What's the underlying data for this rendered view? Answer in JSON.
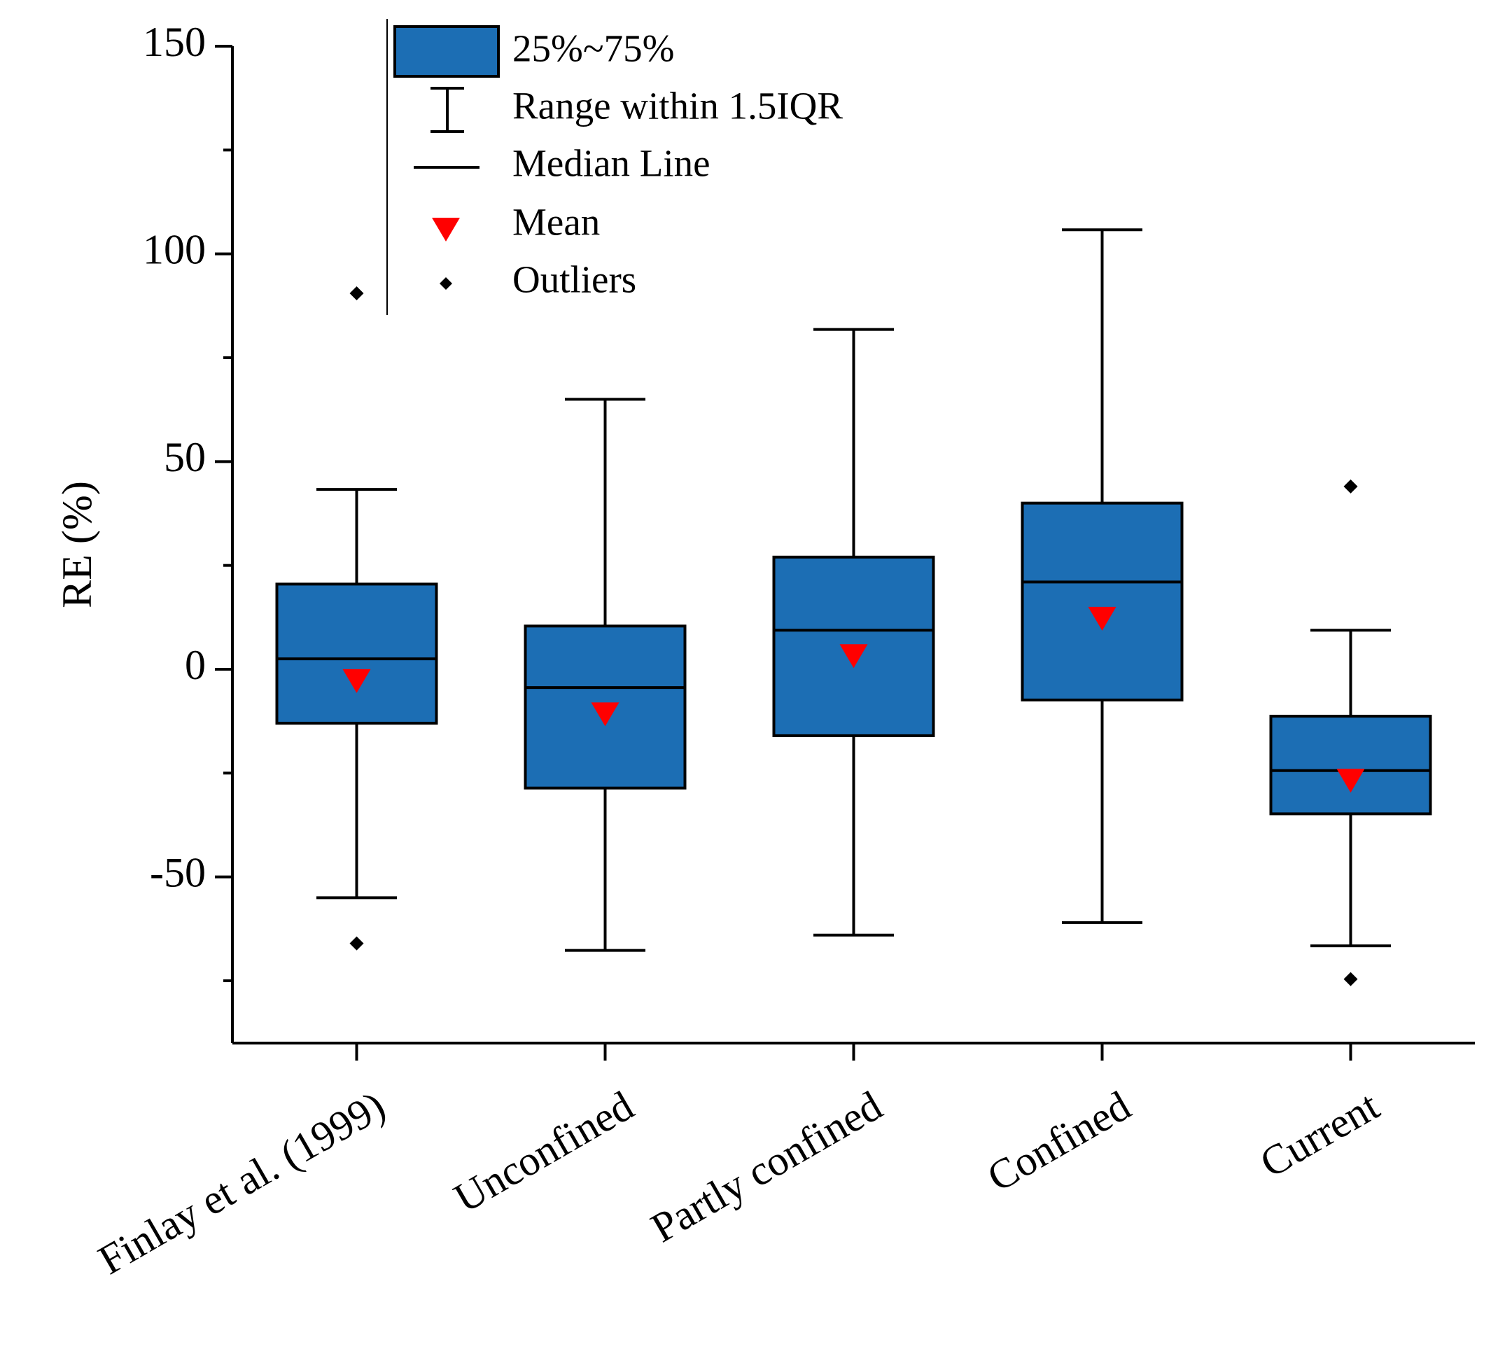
{
  "chart_data": {
    "type": "box",
    "y_label": "RE (%)",
    "categories": [
      "Finlay et al. (1999)",
      "Unconfined",
      "Partly confined",
      "Confined",
      "Current"
    ],
    "whisker_low": [
      -55,
      -67.7,
      -64,
      -61,
      -66.6
    ],
    "q1": [
      -13,
      -28.6,
      -16,
      -7.4,
      -34.8
    ],
    "median": [
      2.5,
      -4.4,
      9.4,
      21,
      -24.4
    ],
    "q3": [
      20.5,
      10.4,
      27,
      40,
      -11.3
    ],
    "whisker_high": [
      43.3,
      65,
      81.8,
      105.8,
      9.4
    ],
    "mean": [
      -2,
      -10,
      4,
      13,
      -26
    ],
    "outliers": [
      [
        90.5,
        -66
      ],
      [],
      [],
      [],
      [
        44,
        -74.6
      ]
    ],
    "box_color": "#1c6eb4",
    "mean_color": "#ff0000",
    "ylim": [
      -90,
      150
    ],
    "yticks": [
      150,
      100,
      50,
      0,
      -50
    ],
    "yminor_ticks": [
      125,
      75,
      25,
      -25,
      -75
    ],
    "legend": [
      "25%~75%",
      "Range within 1.5IQR",
      "Median Line",
      "Mean",
      "Outliers"
    ]
  }
}
